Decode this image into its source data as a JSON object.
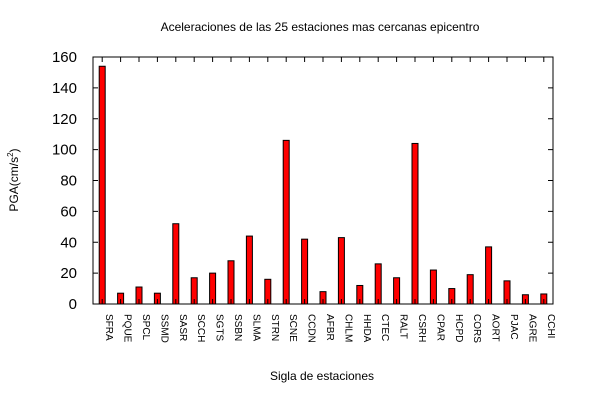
{
  "chart_data": {
    "type": "bar",
    "title": "Aceleraciones de las 25 estaciones mas cercanas epicentro",
    "xlabel": "Sigla de estaciones",
    "ylabel": "PGA(cm/s",
    "ylabel_sup": "2",
    "ylabel_close": ")",
    "ylim": [
      0,
      160
    ],
    "yticks": [
      "0",
      "20",
      "40",
      "60",
      "80",
      "100",
      "120",
      "140",
      "160"
    ],
    "categories": [
      "SFRA",
      "PQUE",
      "SPCL",
      "SSMD",
      "SASR",
      "SCCH",
      "SGTS",
      "SSBN",
      "SLMA",
      "STRN",
      "SCNE",
      "CCDN",
      "AFBR",
      "CHLM",
      "HHDA",
      "CTEC",
      "RALT",
      "CSRH",
      "CPAR",
      "HCPD",
      "CORS",
      "AORT",
      "PJAC",
      "AGRE",
      "CCHI"
    ],
    "values": [
      154,
      7,
      11,
      7,
      52,
      17,
      20,
      28,
      44,
      16,
      106,
      42,
      8,
      43,
      12,
      26,
      17,
      104,
      22,
      10,
      19,
      37,
      15,
      6,
      6.5
    ],
    "bar_color": "#ff0000",
    "bar_stroke": "#000000",
    "grid": false,
    "legend": "none"
  }
}
